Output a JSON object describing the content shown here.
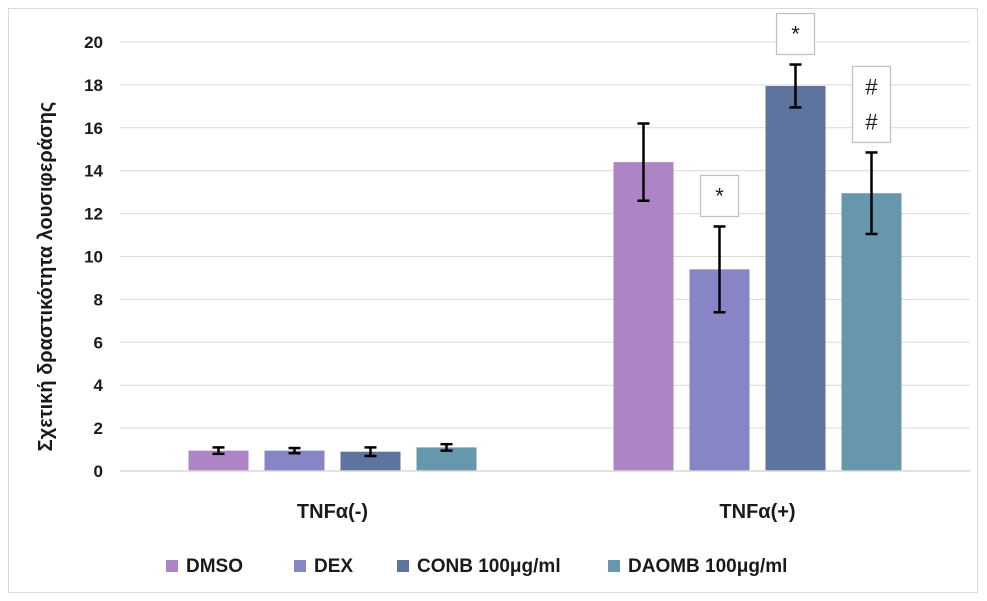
{
  "chart_data": {
    "type": "bar",
    "title": "",
    "xlabel": "",
    "ylabel": "Σχετική δραστικότητα λουσιφεράσης",
    "ylim": [
      0,
      20
    ],
    "yticks": [
      0,
      2,
      4,
      6,
      8,
      10,
      12,
      14,
      16,
      18,
      20
    ],
    "grid": true,
    "legend_position": "bottom",
    "categories": [
      "TNFα(-)",
      "TNFα(+)"
    ],
    "series": [
      {
        "name": "DMSO",
        "color": "#ad84c6",
        "values": [
          0.95,
          14.4
        ],
        "errors": [
          0.15,
          1.8
        ]
      },
      {
        "name": "DEX",
        "color": "#8785c6",
        "values": [
          0.95,
          9.4
        ],
        "errors": [
          0.12,
          2.0
        ]
      },
      {
        "name": "CONB 100μg/ml",
        "color": "#5e739d",
        "values": [
          0.9,
          17.95
        ],
        "errors": [
          0.2,
          1.0
        ]
      },
      {
        "name": "DAOMB 100μg/ml",
        "color": "#6797ad",
        "values": [
          1.1,
          12.95
        ],
        "errors": [
          0.15,
          1.9
        ]
      }
    ],
    "annotations": [
      {
        "category": "TNFα(+)",
        "series": "DEX",
        "lines": [
          "*"
        ]
      },
      {
        "category": "TNFα(+)",
        "series": "CONB 100μg/ml",
        "lines": [
          "*"
        ]
      },
      {
        "category": "TNFα(+)",
        "series": "DAOMB 100μg/ml",
        "lines": [
          "#",
          "#"
        ]
      }
    ]
  }
}
